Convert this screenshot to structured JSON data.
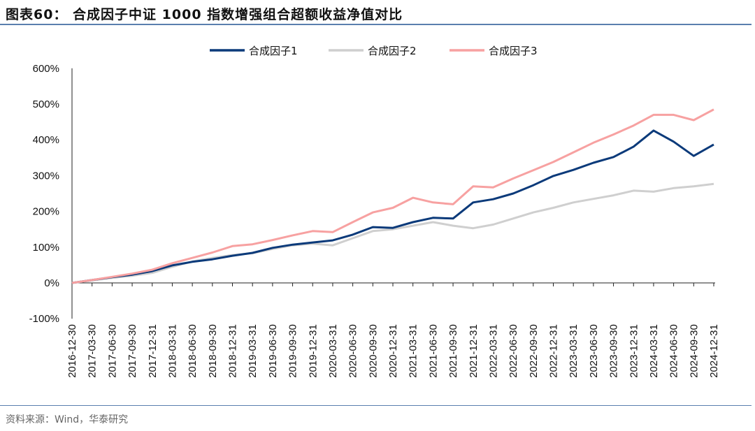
{
  "title": "图表60： 合成因子中证 1000 指数增强组合超额收益净值对比",
  "source": "资料来源：Wind，华泰研究",
  "chart_data": {
    "type": "line",
    "title": "",
    "xlabel": "",
    "ylabel": "",
    "ylim": [
      -100,
      600
    ],
    "y_ticks": [
      "-100%",
      "0%",
      "100%",
      "200%",
      "300%",
      "400%",
      "500%",
      "600%"
    ],
    "y_tick_values": [
      -100,
      0,
      100,
      200,
      300,
      400,
      500,
      600
    ],
    "legend_position": "top",
    "grid": false,
    "x": [
      "2016-12-30",
      "2017-03-30",
      "2017-06-30",
      "2017-09-30",
      "2017-12-31",
      "2018-03-31",
      "2018-06-30",
      "2018-09-30",
      "2018-12-31",
      "2019-03-31",
      "2019-06-30",
      "2019-09-30",
      "2019-12-31",
      "2020-03-31",
      "2020-06-30",
      "2020-09-30",
      "2020-12-31",
      "2021-03-31",
      "2021-06-30",
      "2021-09-30",
      "2021-12-31",
      "2022-03-31",
      "2022-06-30",
      "2022-09-30",
      "2022-12-31",
      "2023-03-31",
      "2023-06-30",
      "2023-09-30",
      "2023-12-31",
      "2024-03-31",
      "2024-06-30",
      "2024-09-30",
      "2024-12-31"
    ],
    "series": [
      {
        "name": "合成因子1",
        "color": "#0b3a7a",
        "values": [
          0,
          8,
          16,
          23,
          33,
          49,
          59,
          66,
          76,
          84,
          98,
          107,
          113,
          119,
          135,
          156,
          154,
          170,
          182,
          180,
          225,
          234,
          250,
          273,
          299,
          316,
          336,
          352,
          381,
          426,
          395,
          355,
          387
        ]
      },
      {
        "name": "合成因子2",
        "color": "#cfcfcf",
        "values": [
          0,
          7,
          14,
          20,
          28,
          45,
          60,
          70,
          78,
          83,
          95,
          105,
          110,
          105,
          125,
          145,
          150,
          160,
          170,
          160,
          153,
          163,
          180,
          197,
          210,
          225,
          235,
          245,
          258,
          255,
          265,
          270,
          277
        ]
      },
      {
        "name": "合成因子3",
        "color": "#f7a1a1",
        "values": [
          0,
          8,
          17,
          26,
          37,
          55,
          70,
          85,
          103,
          108,
          120,
          133,
          145,
          142,
          170,
          197,
          210,
          238,
          225,
          220,
          270,
          267,
          292,
          315,
          338,
          365,
          392,
          415,
          440,
          470,
          470,
          455,
          485
        ]
      }
    ]
  }
}
